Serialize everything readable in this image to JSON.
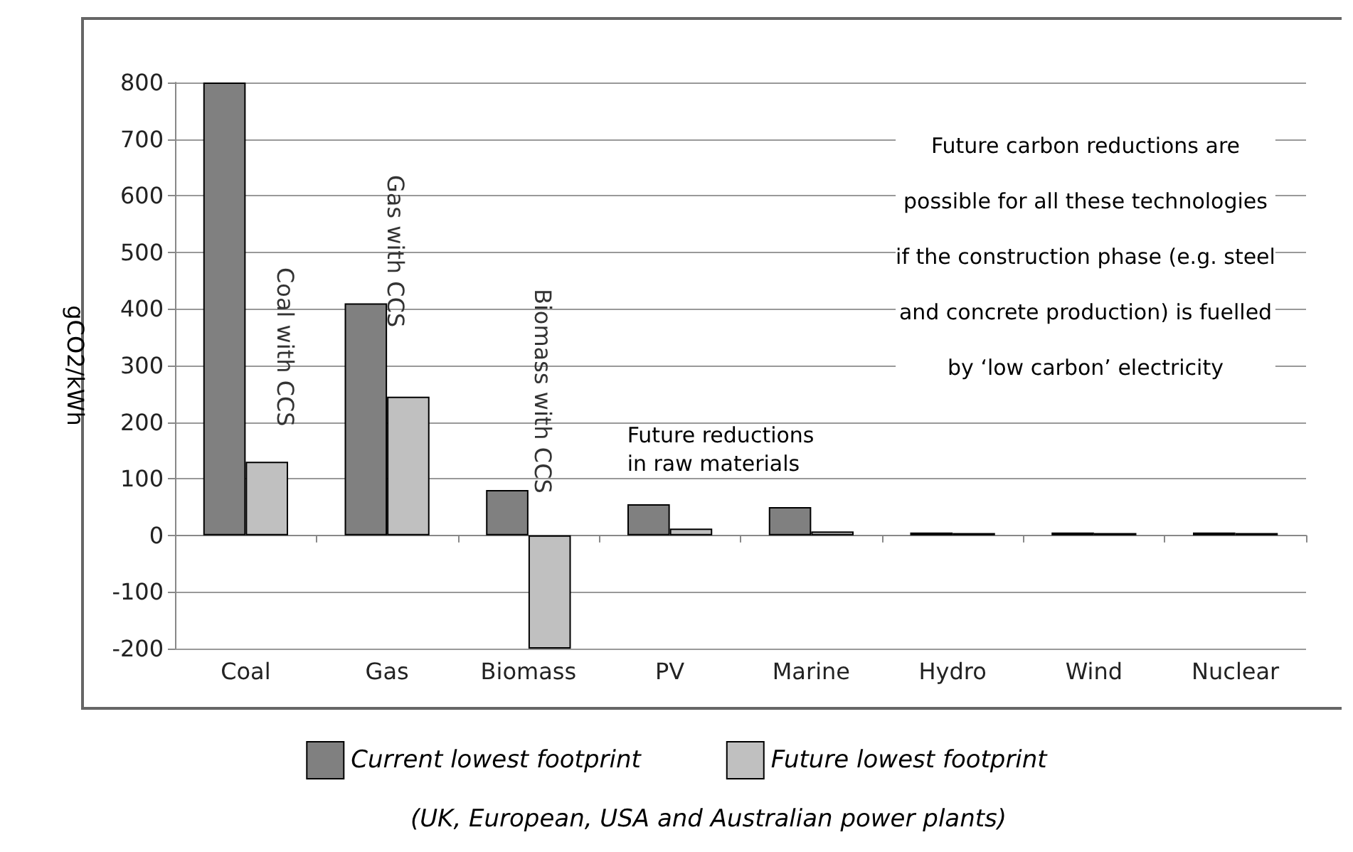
{
  "chart_data": {
    "type": "bar",
    "ylabel": "gCO2/kWh",
    "categories": [
      "Coal",
      "Gas",
      "Biomass",
      "PV",
      "Marine",
      "Hydro",
      "Wind",
      "Nuclear"
    ],
    "series": [
      {
        "name": "Current lowest footprint",
        "color": "#808080",
        "values": [
          800,
          410,
          80,
          55,
          50,
          5,
          5,
          5
        ]
      },
      {
        "name": "Future lowest footprint",
        "color": "#c0c0c0",
        "values": [
          130,
          245,
          -200,
          12,
          7,
          4,
          4,
          4
        ]
      }
    ],
    "ylim": [
      -200,
      800
    ],
    "yticks": [
      -200,
      -100,
      0,
      100,
      200,
      300,
      400,
      500,
      600,
      700,
      800
    ],
    "grid": "y",
    "legend": "bottom",
    "annotations": [
      "Coal with CCS",
      "Gas with CCS",
      "Biomass with CCS",
      "Future reductions\nin raw materials",
      "Future carbon reductions are\npossible for all these technologies\nif the construction phase (e.g. steel\nand concrete production) is fuelled\nby ‘low carbon’ electricity",
      "(UK, European, USA and Australian power plants)"
    ]
  }
}
